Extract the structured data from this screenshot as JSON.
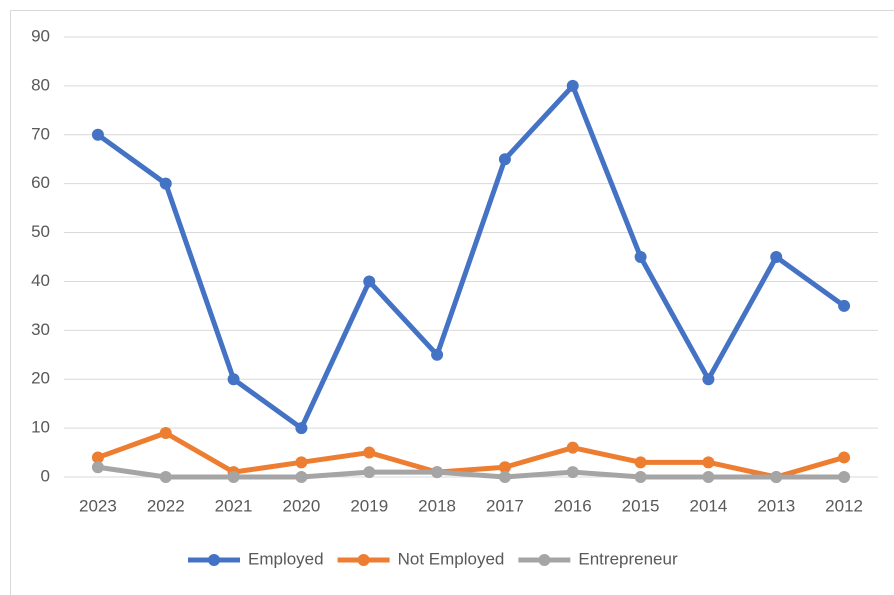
{
  "chart_data": {
    "type": "line",
    "categories": [
      "2023",
      "2022",
      "2021",
      "2020",
      "2019",
      "2018",
      "2017",
      "2016",
      "2015",
      "2014",
      "2013",
      "2012"
    ],
    "series": [
      {
        "name": "Employed",
        "color": "#4472c4",
        "values": [
          70,
          60,
          20,
          10,
          40,
          25,
          65,
          80,
          45,
          20,
          45,
          35
        ]
      },
      {
        "name": "Not Employed",
        "color": "#ed7d31",
        "values": [
          4,
          9,
          1,
          3,
          5,
          1,
          2,
          6,
          3,
          3,
          0,
          4
        ]
      },
      {
        "name": "Entrepreneur",
        "color": "#a5a5a5",
        "values": [
          2,
          0,
          0,
          0,
          1,
          1,
          0,
          1,
          0,
          0,
          0,
          0
        ]
      }
    ],
    "ylim": [
      0,
      90
    ],
    "yticks": [
      0,
      10,
      20,
      30,
      40,
      50,
      60,
      70,
      80,
      90
    ],
    "grid": true,
    "legend": "bottom"
  }
}
